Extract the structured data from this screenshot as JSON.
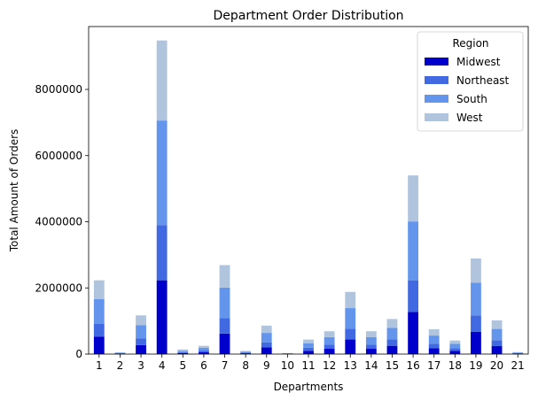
{
  "chart_data": {
    "type": "bar",
    "stacked": true,
    "title": "Department Order Distribution",
    "xlabel": "Departments",
    "ylabel": "Total Amount of Orders",
    "ylim": [
      0,
      9900000
    ],
    "yticks": [
      0,
      2000000,
      4000000,
      6000000,
      8000000
    ],
    "ytick_labels": [
      "0",
      "2000000",
      "4000000",
      "6000000",
      "8000000"
    ],
    "grid": false,
    "legend": {
      "title": "Region",
      "placement": "top-right"
    },
    "categories": [
      "1",
      "2",
      "3",
      "4",
      "5",
      "6",
      "7",
      "8",
      "9",
      "10",
      "11",
      "12",
      "13",
      "14",
      "15",
      "16",
      "17",
      "18",
      "19",
      "20",
      "21"
    ],
    "series": [
      {
        "name": "Midwest",
        "color": "#0000cd",
        "values": [
          530000,
          16000,
          270000,
          2230000,
          30000,
          60000,
          620000,
          25000,
          200000,
          8000,
          100000,
          160000,
          440000,
          160000,
          250000,
          1270000,
          180000,
          100000,
          670000,
          240000,
          15000
        ]
      },
      {
        "name": "Northeast",
        "color": "#4169e1",
        "values": [
          390000,
          10000,
          200000,
          1670000,
          30000,
          50000,
          470000,
          19000,
          150000,
          7000,
          90000,
          120000,
          330000,
          120000,
          190000,
          960000,
          130000,
          80000,
          500000,
          180000,
          12000
        ]
      },
      {
        "name": "South",
        "color": "#6495ed",
        "values": [
          740000,
          15000,
          400000,
          3160000,
          40000,
          80000,
          920000,
          28000,
          290000,
          10000,
          140000,
          230000,
          620000,
          230000,
          350000,
          1780000,
          250000,
          130000,
          990000,
          340000,
          20000
        ]
      },
      {
        "name": "West",
        "color": "#b0c4de",
        "values": [
          570000,
          9000,
          300000,
          2420000,
          40000,
          60000,
          680000,
          23000,
          220000,
          7000,
          110000,
          180000,
          490000,
          180000,
          270000,
          1390000,
          190000,
          100000,
          730000,
          260000,
          13000
        ]
      }
    ]
  }
}
